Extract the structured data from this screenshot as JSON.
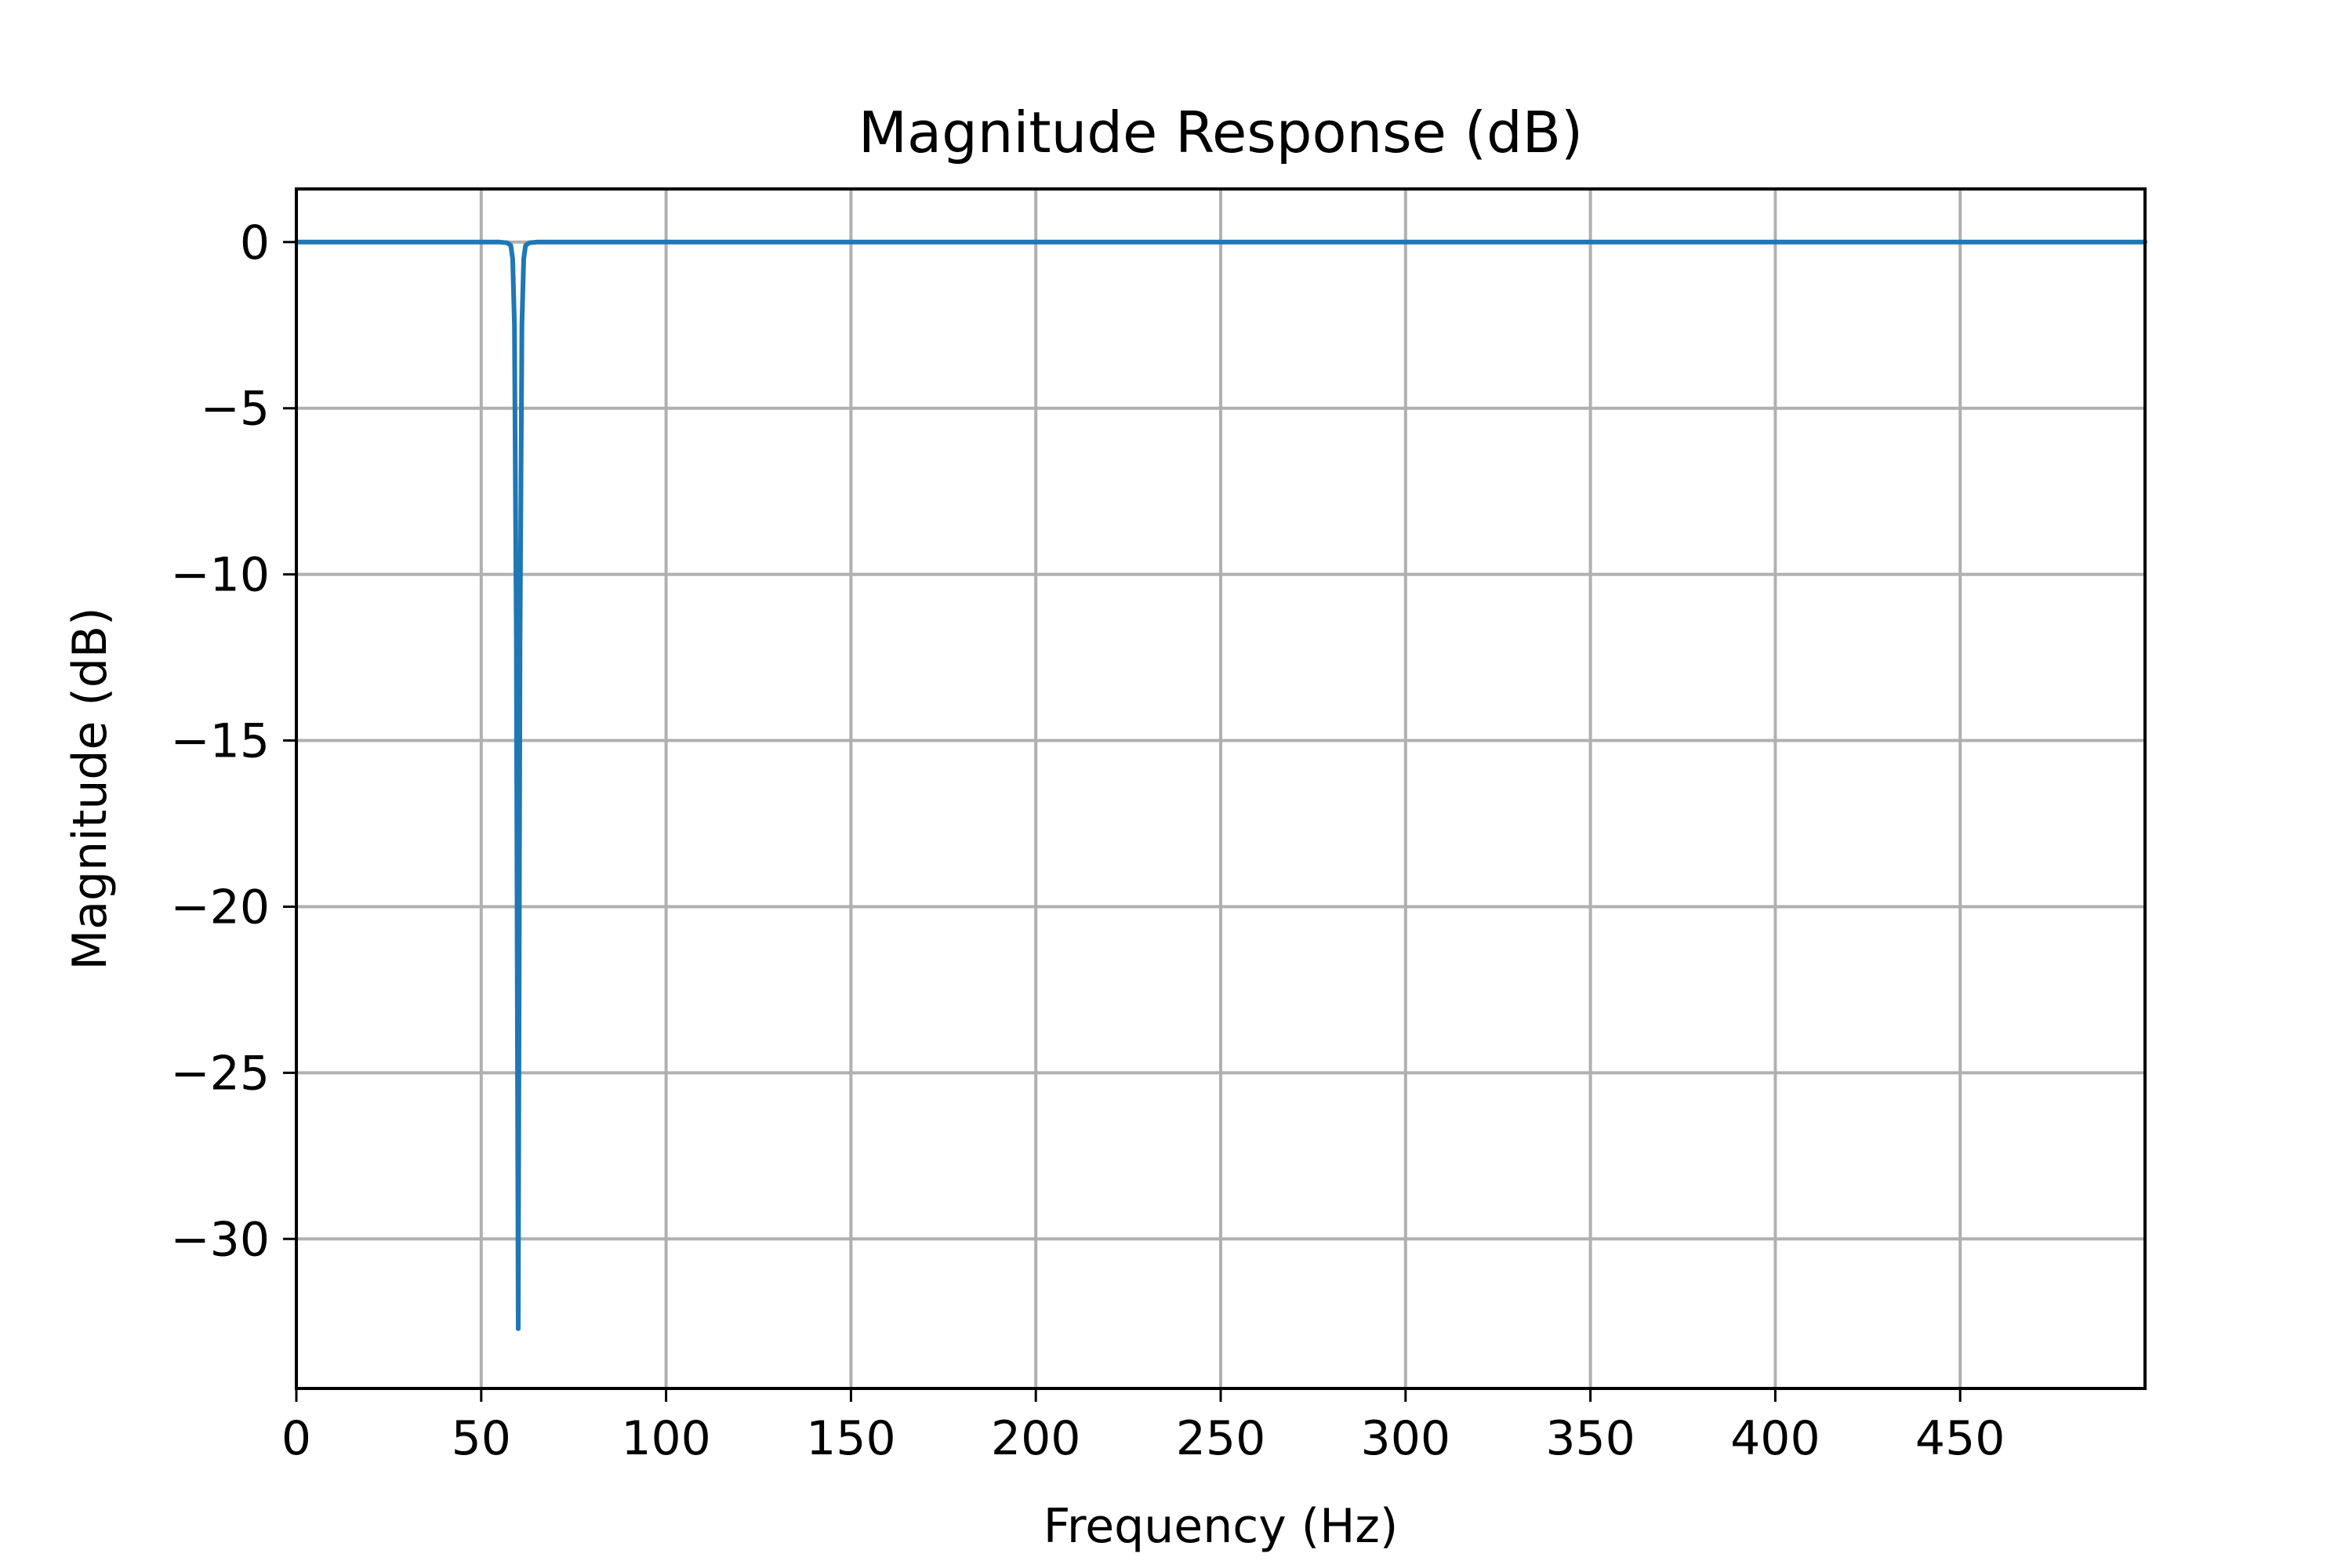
{
  "chart_data": {
    "type": "line",
    "title": "Magnitude Response (dB)",
    "xlabel": "Frequency (Hz)",
    "ylabel": "Magnitude (dB)",
    "xlim": [
      0,
      500
    ],
    "ylim": [
      -34.5,
      1.6
    ],
    "xticks": [
      0,
      50,
      100,
      150,
      200,
      250,
      300,
      350,
      400,
      450
    ],
    "xtick_labels": [
      "0",
      "50",
      "100",
      "150",
      "200",
      "250",
      "300",
      "350",
      "400",
      "450"
    ],
    "yticks": [
      0,
      -5,
      -10,
      -15,
      -20,
      -25,
      -30
    ],
    "ytick_labels": [
      "0",
      "−5",
      "−10",
      "−15",
      "−20",
      "−25",
      "−30"
    ],
    "grid": true,
    "color": "#1f77b4",
    "series": [
      {
        "x": [
          0,
          50,
          55,
          57,
          58,
          58.5,
          59,
          59.5,
          60,
          60.5,
          61,
          61.5,
          62,
          63,
          65,
          70,
          100,
          200,
          300,
          400,
          500
        ],
        "y": [
          0,
          0,
          0,
          -0.02,
          -0.1,
          -0.5,
          -2.5,
          -12,
          -32.7,
          -12,
          -2.5,
          -0.5,
          -0.1,
          -0.02,
          0,
          0,
          0,
          0,
          0,
          0,
          0
        ]
      }
    ]
  }
}
